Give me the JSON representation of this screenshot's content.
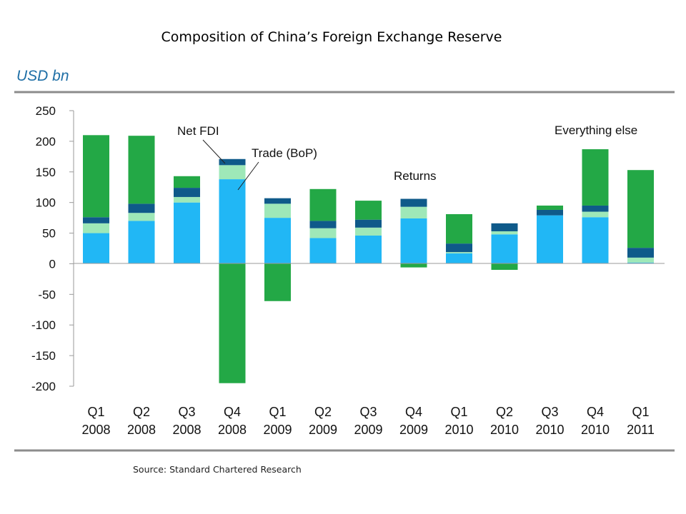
{
  "chart_data": {
    "type": "bar",
    "stacked": true,
    "title": "Composition of China’s Foreign Exchange Reserve",
    "unit_label": "USD bn",
    "ylim": [
      -200,
      250
    ],
    "yticks": [
      250,
      200,
      150,
      100,
      50,
      0,
      -50,
      -100,
      -150,
      -200
    ],
    "categories": [
      [
        "Q1",
        "2008"
      ],
      [
        "Q2",
        "2008"
      ],
      [
        "Q3",
        "2008"
      ],
      [
        "Q4",
        "2008"
      ],
      [
        "Q1",
        "2009"
      ],
      [
        "Q2",
        "2009"
      ],
      [
        "Q3",
        "2009"
      ],
      [
        "Q4",
        "2009"
      ],
      [
        "Q1",
        "2010"
      ],
      [
        "Q2",
        "2010"
      ],
      [
        "Q3",
        "2010"
      ],
      [
        "Q4",
        "2010"
      ],
      [
        "Q1",
        "2011"
      ]
    ],
    "series": [
      {
        "name": "Trade (BoP)",
        "color": "#21b7f5",
        "values": [
          50,
          70,
          100,
          138,
          75,
          42,
          46,
          74,
          17,
          48,
          79,
          76,
          2
        ]
      },
      {
        "name": "Net FDI",
        "color": "#9ee8b8",
        "values": [
          16,
          13,
          9,
          23,
          23,
          16,
          13,
          19,
          2,
          5,
          0,
          9,
          8
        ]
      },
      {
        "name": "Returns",
        "color": "#0f5a8a",
        "values": [
          10,
          15,
          15,
          10,
          9,
          12,
          13,
          13,
          14,
          13,
          9,
          10,
          16
        ]
      },
      {
        "name": "Everything else",
        "color": "#23a846",
        "values": [
          134,
          111,
          19,
          -195,
          -61,
          52,
          31,
          -6,
          48,
          -10,
          7,
          92,
          127
        ]
      }
    ],
    "annotations": [
      {
        "text": "Net FDI"
      },
      {
        "text": "Trade (BoP)"
      },
      {
        "text": "Returns"
      },
      {
        "text": "Everything else"
      }
    ],
    "source": "Source: Standard Chartered Research"
  }
}
